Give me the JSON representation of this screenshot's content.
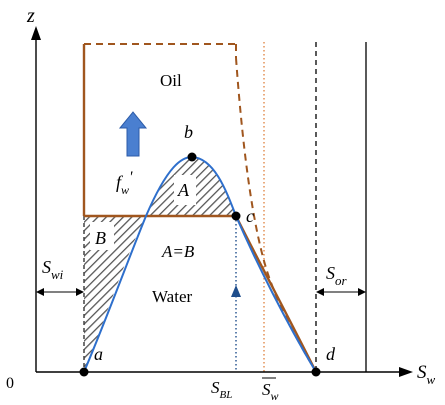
{
  "axes": {
    "y_label": "z",
    "x_label_main": "S",
    "x_label_sub": "w",
    "origin": "0"
  },
  "regions": {
    "oil": "Oil",
    "water": "Water",
    "area_a": "A",
    "area_b": "B",
    "equal_areas": "A=B"
  },
  "points": {
    "a": "a",
    "b": "b",
    "c": "c",
    "d": "d"
  },
  "fw_prime": {
    "main": "f",
    "sub": "w",
    "prime": "'"
  },
  "swi": {
    "main": "S",
    "sub": "wi"
  },
  "sor": {
    "main": "S",
    "sub": "or"
  },
  "sbl": {
    "main": "S",
    "sub": "BL"
  },
  "sw_bar": {
    "main": "S",
    "sub": "w"
  },
  "colors": {
    "brown": "#A0561E",
    "blue_curve": "#2E6FCC",
    "arrow_fill": "#4A7FD0",
    "dotted_blue": "#1F4E8C",
    "dotted_orange": "#E0894A",
    "hatch": "#555555"
  }
}
